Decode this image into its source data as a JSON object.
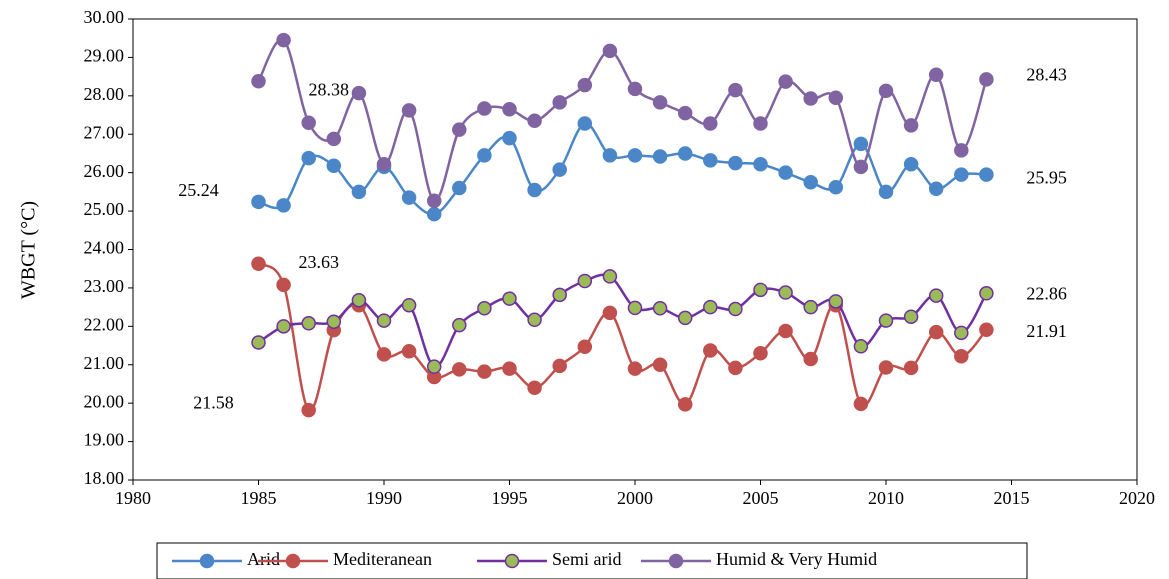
{
  "chart_data": {
    "type": "line",
    "x": [
      1985,
      1986,
      1987,
      1988,
      1989,
      1990,
      1991,
      1992,
      1993,
      1994,
      1995,
      1996,
      1997,
      1998,
      1999,
      2000,
      2001,
      2002,
      2003,
      2004,
      2005,
      2006,
      2007,
      2008,
      2009,
      2010,
      2011,
      2012,
      2013,
      2014
    ],
    "ylabel": "WBGT (°C)",
    "xlim": [
      1980,
      2020
    ],
    "xticks": [
      1980,
      1985,
      1990,
      1995,
      2000,
      2005,
      2010,
      2015,
      2020
    ],
    "ylim": [
      18,
      30
    ],
    "yticks": [
      {
        "value": 18,
        "label": "18.00"
      },
      {
        "value": 19,
        "label": "19.00"
      },
      {
        "value": 20,
        "label": "20.00"
      },
      {
        "value": 21,
        "label": "21.00"
      },
      {
        "value": 22,
        "label": "22.00"
      },
      {
        "value": 23,
        "label": "23.00"
      },
      {
        "value": 24,
        "label": "24.00"
      },
      {
        "value": 25,
        "label": "25.00"
      },
      {
        "value": 26,
        "label": "26.00"
      },
      {
        "value": 27,
        "label": "27.00"
      },
      {
        "value": 28,
        "label": "28.00"
      },
      {
        "value": 29,
        "label": "29.00"
      },
      {
        "value": 30,
        "label": "30.00"
      }
    ],
    "grid": false,
    "legend": "bottom",
    "series": [
      {
        "name": "Arid",
        "color": "#4a86c8",
        "marker_color": "#4a86c8",
        "values": [
          25.24,
          25.15,
          26.38,
          26.18,
          25.5,
          26.15,
          25.35,
          24.92,
          25.6,
          26.45,
          26.9,
          25.55,
          26.08,
          27.28,
          26.45,
          26.45,
          26.42,
          26.5,
          26.32,
          26.25,
          26.22,
          26.0,
          25.75,
          25.62,
          26.75,
          25.5,
          26.22,
          25.58,
          25.95,
          25.95
        ],
        "value_labels": [
          "25.24",
          null,
          null,
          null,
          null,
          null,
          null,
          null,
          null,
          null,
          null,
          null,
          null,
          null,
          null,
          null,
          null,
          null,
          null,
          null,
          null,
          null,
          null,
          null,
          null,
          null,
          null,
          null,
          null,
          "25.95"
        ]
      },
      {
        "name": "Mediteranean",
        "color": "#c0504d",
        "marker_color": "#c0504d",
        "values": [
          23.63,
          23.08,
          19.82,
          21.9,
          22.55,
          21.27,
          21.35,
          20.68,
          20.88,
          20.82,
          20.9,
          20.4,
          20.97,
          21.47,
          22.35,
          20.9,
          21.0,
          19.97,
          21.37,
          20.92,
          21.3,
          21.88,
          21.15,
          22.55,
          19.98,
          20.93,
          20.92,
          21.85,
          21.22,
          21.91
        ],
        "value_labels": [
          "23.63",
          null,
          null,
          null,
          null,
          null,
          null,
          null,
          null,
          null,
          null,
          null,
          null,
          null,
          null,
          null,
          null,
          null,
          null,
          null,
          null,
          null,
          null,
          null,
          null,
          null,
          null,
          null,
          null,
          "21.91"
        ]
      },
      {
        "name": "Semi arid",
        "color": "#7030a0",
        "marker_color": "#9bbb59",
        "values": [
          21.58,
          22.0,
          22.08,
          22.12,
          22.68,
          22.15,
          22.55,
          20.95,
          22.03,
          22.47,
          22.72,
          22.17,
          22.82,
          23.18,
          23.3,
          22.48,
          22.47,
          22.22,
          22.5,
          22.45,
          22.95,
          22.88,
          22.5,
          22.65,
          21.48,
          22.15,
          22.25,
          22.8,
          21.83,
          22.86
        ],
        "value_labels": [
          "21.58",
          null,
          null,
          null,
          null,
          null,
          null,
          null,
          null,
          null,
          null,
          null,
          null,
          null,
          null,
          null,
          null,
          null,
          null,
          null,
          null,
          null,
          null,
          null,
          null,
          null,
          null,
          null,
          null,
          "22.86"
        ]
      },
      {
        "name": "Humid & Very Humid",
        "color": "#8064a2",
        "marker_color": "#8064a2",
        "values": [
          28.38,
          29.45,
          27.3,
          26.88,
          28.07,
          26.22,
          27.62,
          25.27,
          27.12,
          27.67,
          27.65,
          27.35,
          27.83,
          28.28,
          29.17,
          28.18,
          27.83,
          27.55,
          27.28,
          28.15,
          27.28,
          28.37,
          27.93,
          27.95,
          26.15,
          28.13,
          27.23,
          28.55,
          26.58,
          28.43
        ],
        "value_labels": [
          "28.38",
          null,
          null,
          null,
          null,
          null,
          null,
          null,
          null,
          null,
          null,
          null,
          null,
          null,
          null,
          null,
          null,
          null,
          null,
          null,
          null,
          null,
          null,
          null,
          null,
          null,
          null,
          null,
          null,
          "28.43"
        ]
      }
    ]
  }
}
